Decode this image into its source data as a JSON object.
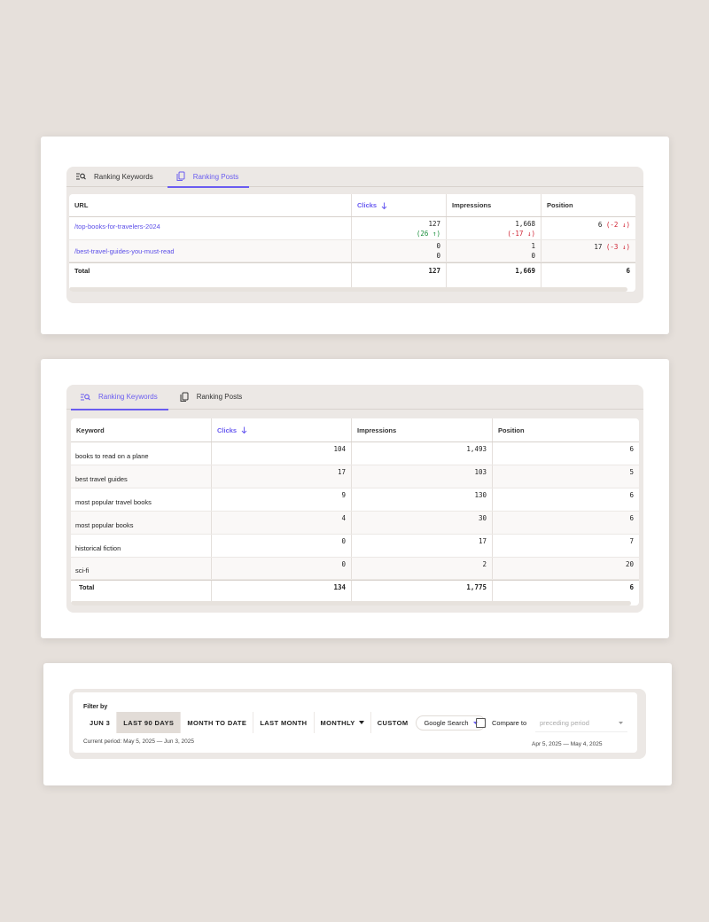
{
  "card1": {
    "tabs": [
      {
        "label": "Ranking Keywords",
        "active": false
      },
      {
        "label": "Ranking Posts",
        "active": true
      }
    ],
    "columns": [
      "URL",
      "Clicks",
      "Impressions",
      "Position"
    ],
    "rows": [
      {
        "url": "/top-books-for-travelers-2024",
        "clicks": "127",
        "clicks_delta": "(26 ↑)",
        "impressions": "1,668",
        "impressions_delta": "(-17 ↓)",
        "position": "6",
        "position_delta": "(-2 ↓)"
      },
      {
        "url": "/best-travel-guides-you-must-read",
        "clicks": "0",
        "clicks_sub": "0",
        "impressions": "1",
        "impressions_sub": "0",
        "position": "17",
        "position_delta": "(-3 ↓)"
      }
    ],
    "total": {
      "label": "Total",
      "clicks": "127",
      "impressions": "1,669",
      "position": "6"
    }
  },
  "card2": {
    "tabs": [
      {
        "label": "Ranking Keywords",
        "active": true
      },
      {
        "label": "Ranking Posts",
        "active": false
      }
    ],
    "columns": [
      "Keyword",
      "Clicks",
      "Impressions",
      "Position"
    ],
    "rows": [
      {
        "keyword": "books to read on a plane",
        "clicks": "104",
        "impressions": "1,493",
        "position": "6"
      },
      {
        "keyword": "best travel guides",
        "clicks": "17",
        "impressions": "103",
        "position": "5"
      },
      {
        "keyword": "most popular travel books",
        "clicks": "9",
        "impressions": "130",
        "position": "6"
      },
      {
        "keyword": "most popular books",
        "clicks": "4",
        "impressions": "30",
        "position": "6"
      },
      {
        "keyword": "historical fiction",
        "clicks": "0",
        "impressions": "17",
        "position": "7"
      },
      {
        "keyword": "sci-fi",
        "clicks": "0",
        "impressions": "2",
        "position": "20"
      }
    ],
    "total": {
      "label": "Total",
      "clicks": "134",
      "impressions": "1,775",
      "position": "6"
    }
  },
  "filter": {
    "label": "Filter by",
    "buttons": [
      "JUN 3",
      "LAST 90 DAYS",
      "MONTH TO DATE",
      "LAST MONTH",
      "MONTHLY",
      "CUSTOM"
    ],
    "selected": "LAST 90 DAYS",
    "source": "Google Search",
    "compare_label": "Compare to",
    "compare_placeholder": "preceding period",
    "current_period": "Current period: May 5, 2025 — Jun 3, 2025",
    "compare_period": "Apr 5, 2025 — May 4, 2025"
  },
  "colors": {
    "accent": "#6a5cf0",
    "up": "#1a8f3c",
    "down": "#cf1f2f",
    "background": "#e6e0db"
  },
  "icons": {
    "keywords_tab": "list-search-icon",
    "posts_tab": "copy-pages-icon",
    "sort": "arrow-down-icon",
    "dropdown": "caret-down-icon",
    "checkbox": "checkbox-icon"
  }
}
